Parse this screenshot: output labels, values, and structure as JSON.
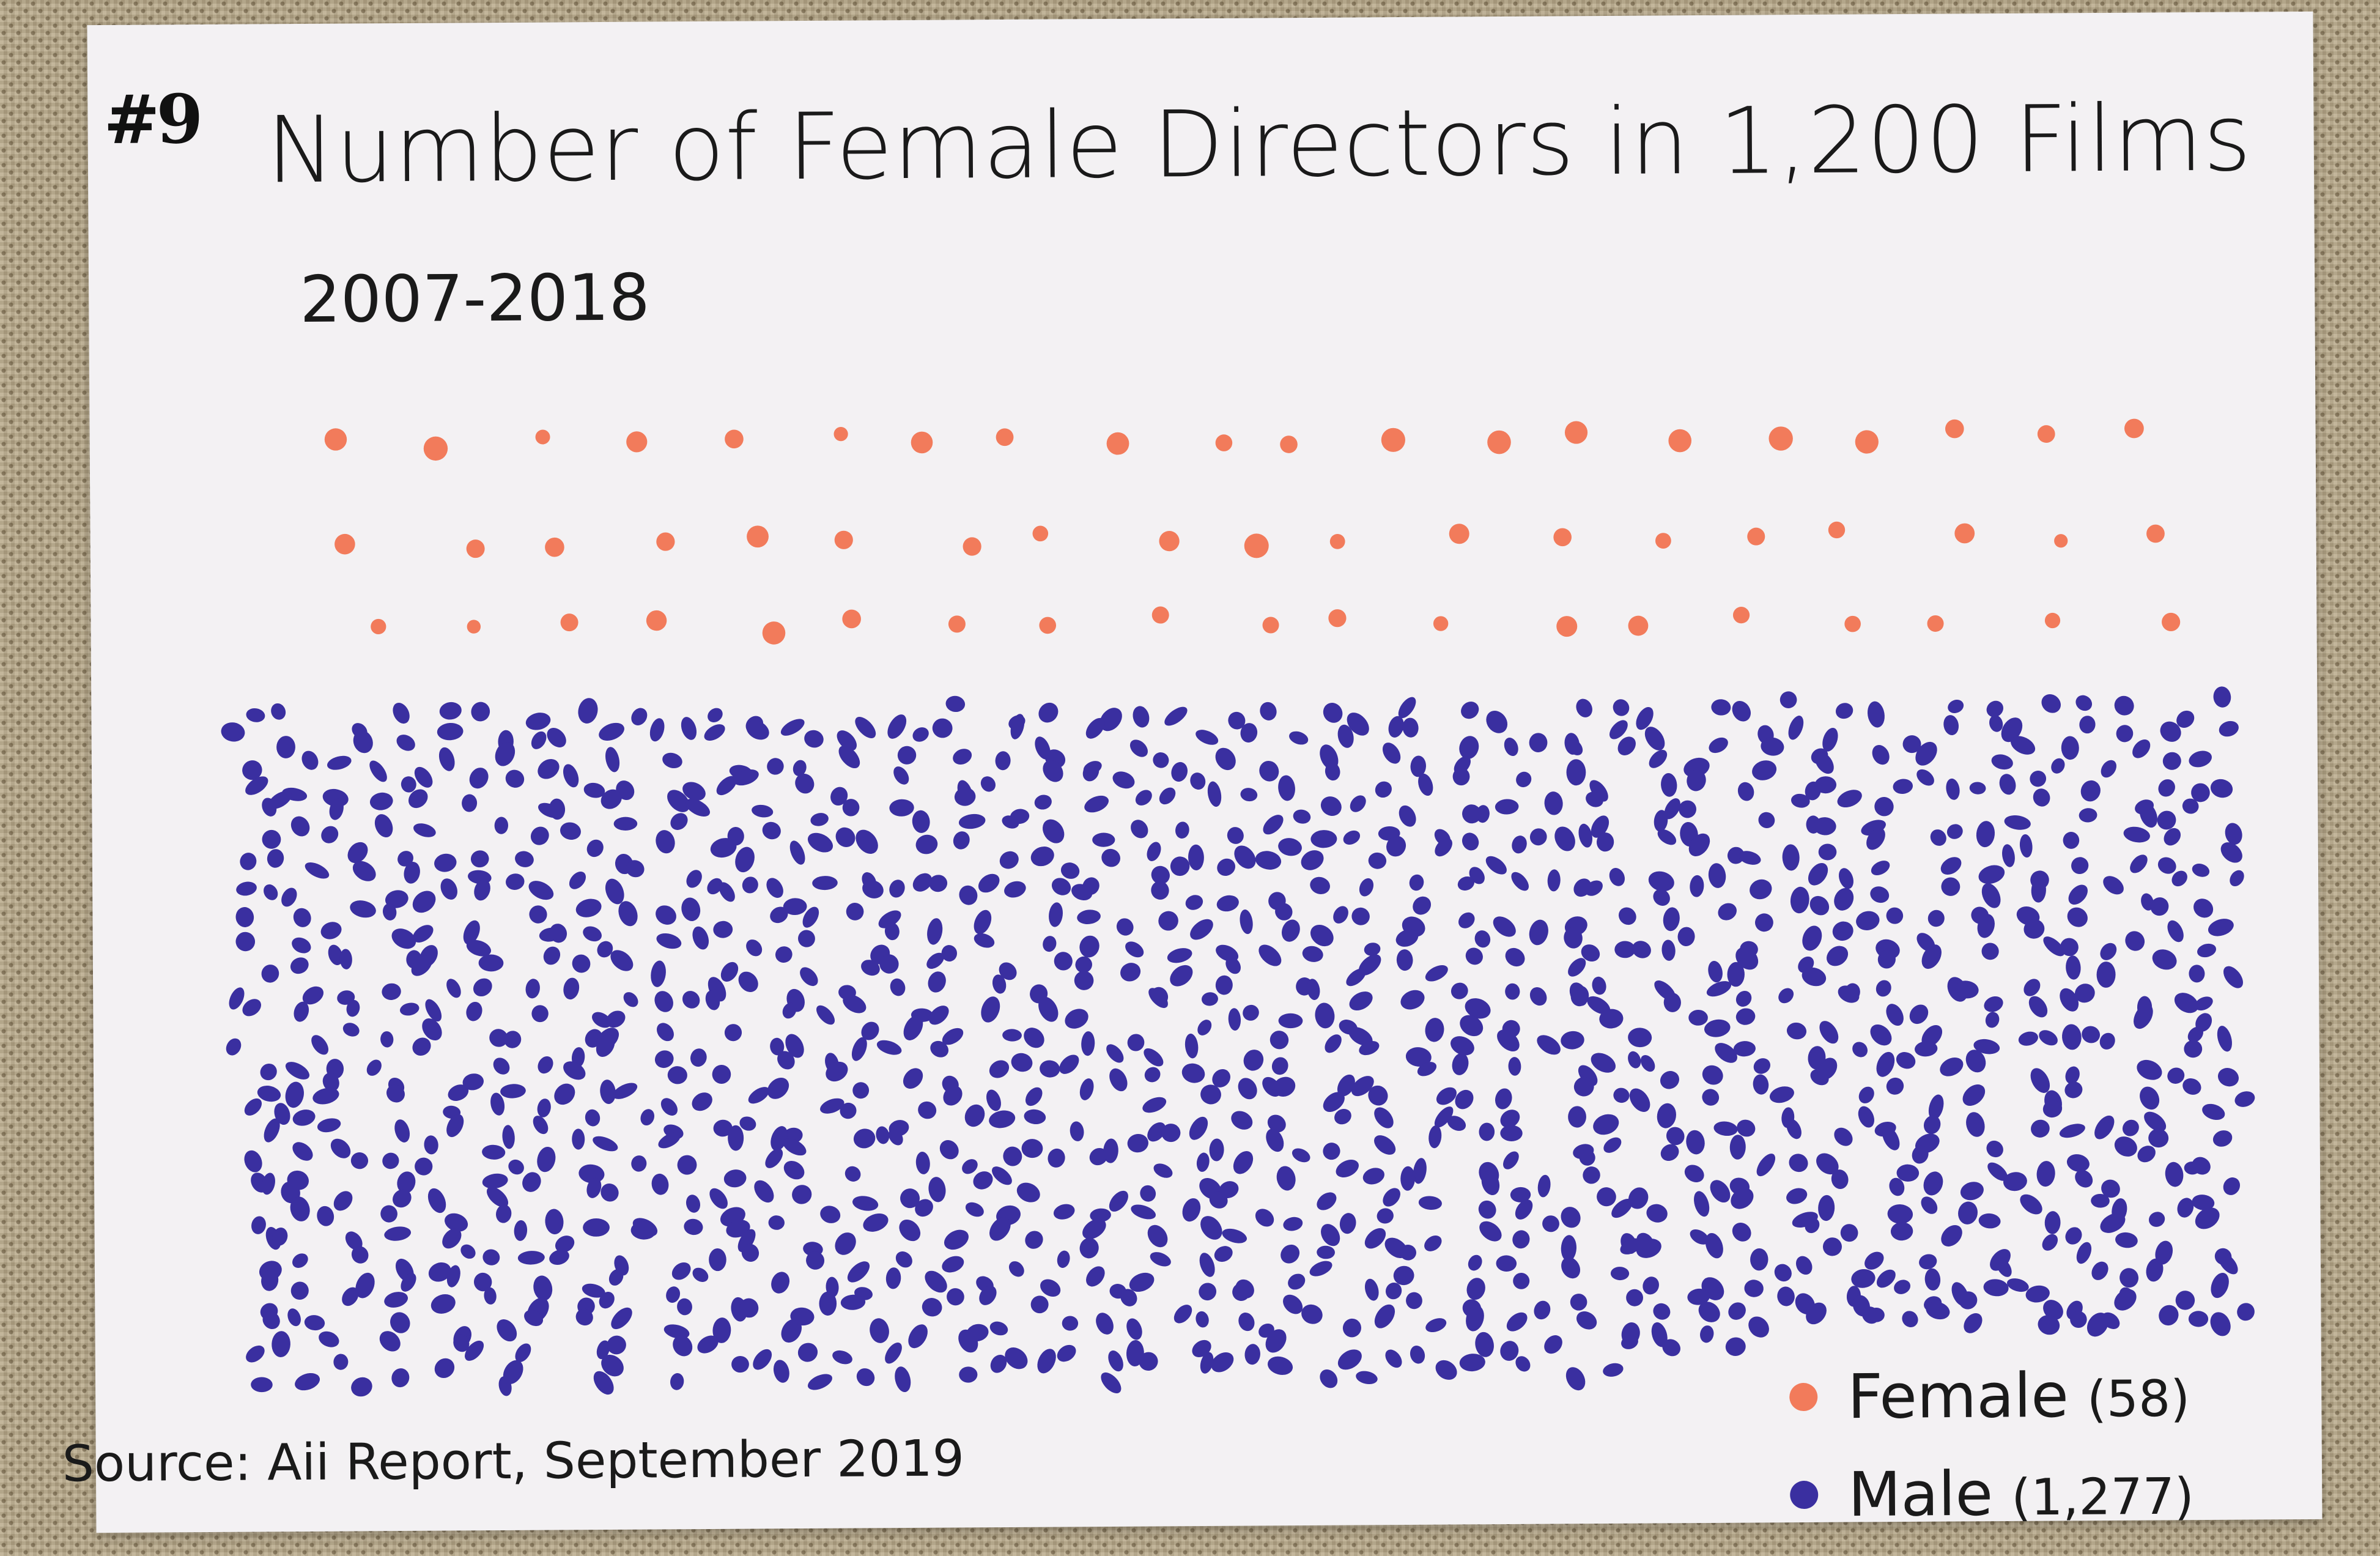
{
  "card": {
    "number": "#9",
    "title": "Number of Female Directors in 1,200 Films",
    "subtitle": "2007-2018",
    "source": "Source: Aii Report, September 2019"
  },
  "legend": [
    {
      "label": "Female",
      "count": "(58)",
      "color": "#f27b5b"
    },
    {
      "label": "Male",
      "count": "(1,277)",
      "color": "#3a2fa0"
    }
  ],
  "chart_data": {
    "type": "unit-dot",
    "title": "Number of Female Directors in 1,200 Films",
    "subtitle": "2007-2018",
    "source": "Source: Aii Report, September 2019",
    "series": [
      {
        "name": "Female",
        "count": 58,
        "color": "#f27b5b",
        "count_label": "(58)"
      },
      {
        "name": "Male",
        "count": 1277,
        "color": "#3a2fa0",
        "count_label": "(1,277)"
      }
    ],
    "legend_position": "bottom-right"
  }
}
